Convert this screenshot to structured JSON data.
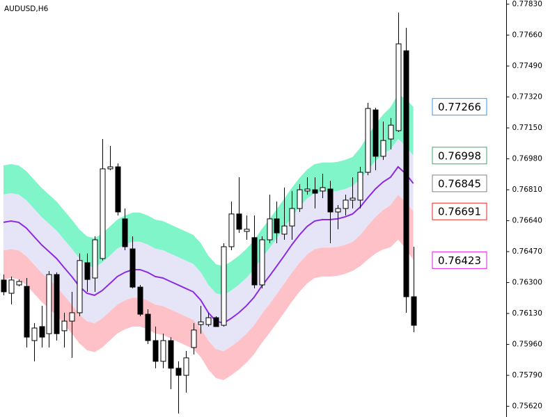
{
  "chart_data": {
    "type": "candlestick",
    "title": "AUDUSD,H6",
    "up_color": "#ffffff",
    "down_color": "#000000",
    "open": [
      0.76314,
      0.76241,
      0.76287,
      0.76279,
      0.75981,
      0.76058,
      0.76019,
      0.76344,
      0.76035,
      0.76088,
      0.76134,
      0.76409,
      0.76325,
      0.76432,
      0.76925,
      0.76936,
      0.7665,
      0.76485,
      0.76275,
      0.76126,
      0.75981,
      0.75867,
      0.75981,
      0.75829,
      0.7579,
      0.75943,
      0.76069,
      0.76069,
      0.76107,
      0.76065,
      0.76497,
      0.76677,
      0.76581,
      0.76547,
      0.76287,
      0.76535,
      0.7665,
      0.76566,
      0.76611,
      0.76707,
      0.76803,
      0.7681,
      0.76803,
      0.76814,
      0.76688,
      0.76707,
      0.76753,
      0.76753,
      0.76906,
      0.77249,
      0.76994,
      0.77089,
      0.77135,
      0.77574,
      0.76222
    ],
    "high": [
      0.76344,
      0.76333,
      0.76317,
      0.76325,
      0.76077,
      0.76172,
      0.76363,
      0.76356,
      0.76134,
      0.76249,
      0.7646,
      0.7646,
      0.76554,
      0.77089,
      0.77051,
      0.76955,
      0.76707,
      0.76554,
      0.76287,
      0.76153,
      0.76058,
      0.76019,
      0.76,
      0.75867,
      0.75924,
      0.76077,
      0.76172,
      0.76134,
      0.76115,
      0.76516,
      0.76745,
      0.76879,
      0.76669,
      0.76669,
      0.76554,
      0.76783,
      0.76745,
      0.76822,
      0.76803,
      0.76841,
      0.76879,
      0.76879,
      0.76898,
      0.7686,
      0.76726,
      0.76783,
      0.76879,
      0.76936,
      0.77288,
      0.77261,
      0.77185,
      0.77204,
      0.77784,
      0.777,
      0.76497
    ],
    "low": [
      0.7623,
      0.7618,
      0.76279,
      0.75943,
      0.75867,
      0.75943,
      0.75943,
      0.75981,
      0.75943,
      0.75886,
      0.76115,
      0.76249,
      0.76249,
      0.76421,
      0.76917,
      0.76669,
      0.76478,
      0.76268,
      0.76115,
      0.75962,
      0.75829,
      0.75829,
      0.75714,
      0.7558,
      0.75695,
      0.75905,
      0.76019,
      0.76058,
      0.76058,
      0.76058,
      0.76478,
      0.76573,
      0.76535,
      0.76268,
      0.76268,
      0.76516,
      0.76516,
      0.76535,
      0.76535,
      0.76688,
      0.76783,
      0.76707,
      0.76764,
      0.76516,
      0.76593,
      0.76669,
      0.76707,
      0.76707,
      0.7689,
      0.76917,
      0.76974,
      0.77032,
      0.77127,
      0.76134,
      0.76027
    ],
    "close": [
      0.76249,
      0.76314,
      0.76306,
      0.76,
      0.7605,
      0.76,
      0.76344,
      0.76019,
      0.76088,
      0.76134,
      0.76421,
      0.76317,
      0.76535,
      0.76925,
      0.76936,
      0.76688,
      0.76497,
      0.76275,
      0.76126,
      0.75981,
      0.75867,
      0.75981,
      0.75829,
      0.7579,
      0.75886,
      0.76039,
      0.76084,
      0.76107,
      0.76058,
      0.76497,
      0.76677,
      0.76593,
      0.76593,
      0.76287,
      0.76535,
      0.7665,
      0.76573,
      0.76611,
      0.76707,
      0.7681,
      0.76814,
      0.76791,
      0.76822,
      0.76688,
      0.76707,
      0.76753,
      0.76764,
      0.76906,
      0.77257,
      0.76994,
      0.77081,
      0.77165,
      0.77612,
      0.76222,
      0.76065
    ],
    "bands": [
      {
        "color": "#7ff5c9",
        "label_color": "#3d94e6",
        "values": [
          0.76944,
          0.76951,
          0.76944,
          0.76913,
          0.76867,
          0.76821,
          0.76783,
          0.76745,
          0.76695,
          0.76646,
          0.76592,
          0.76554,
          0.76543,
          0.76569,
          0.76607,
          0.76646,
          0.76669,
          0.76684,
          0.76684,
          0.76669,
          0.76646,
          0.76638,
          0.76619,
          0.766,
          0.76581,
          0.76562,
          0.76516,
          0.76447,
          0.76401,
          0.7639,
          0.76416,
          0.76447,
          0.76485,
          0.76531,
          0.76592,
          0.76646,
          0.76703,
          0.76761,
          0.76821,
          0.76875,
          0.76921,
          0.76951,
          0.76959,
          0.76959,
          0.76963,
          0.76974,
          0.7699,
          0.7704,
          0.77106,
          0.77169,
          0.77222,
          0.77264,
          0.77336,
          0.77308,
          0.77266
        ]
      },
      {
        "color": "#e6e4f7",
        "label_color": "#3aa86a",
        "values": [
          0.76784,
          0.76791,
          0.76784,
          0.76753,
          0.76707,
          0.76661,
          0.76623,
          0.76585,
          0.76535,
          0.76486,
          0.76432,
          0.76394,
          0.76383,
          0.76409,
          0.76447,
          0.76486,
          0.76509,
          0.76524,
          0.76524,
          0.76509,
          0.76486,
          0.76478,
          0.76459,
          0.7644,
          0.76421,
          0.76402,
          0.76356,
          0.76287,
          0.76241,
          0.7623,
          0.76256,
          0.76287,
          0.76325,
          0.76371,
          0.76432,
          0.76486,
          0.76543,
          0.76601,
          0.76661,
          0.76715,
          0.76761,
          0.76791,
          0.76799,
          0.76799,
          0.76803,
          0.76814,
          0.7683,
          0.76868,
          0.76919,
          0.76967,
          0.77005,
          0.77032,
          0.77089,
          0.77051,
          0.76998
        ]
      },
      {
        "color": "#8a2be2",
        "label_color": "#808080",
        "values": [
          0.76631,
          0.76638,
          0.76631,
          0.766,
          0.76554,
          0.76508,
          0.7647,
          0.76432,
          0.76382,
          0.76333,
          0.76279,
          0.76241,
          0.7623,
          0.76256,
          0.76294,
          0.76333,
          0.76356,
          0.76371,
          0.76371,
          0.76356,
          0.76333,
          0.76325,
          0.76306,
          0.76287,
          0.76268,
          0.76249,
          0.76203,
          0.76134,
          0.76088,
          0.76077,
          0.76103,
          0.76134,
          0.76172,
          0.76218,
          0.76279,
          0.76333,
          0.7639,
          0.76448,
          0.76508,
          0.76562,
          0.76608,
          0.76638,
          0.76646,
          0.76646,
          0.7665,
          0.76661,
          0.76677,
          0.76715,
          0.76766,
          0.76814,
          0.76852,
          0.76879,
          0.76936,
          0.76898,
          0.76845
        ]
      },
      {
        "color": "#ffc1c8",
        "label_color": "#e8231f",
        "values": [
          0.76477,
          0.76484,
          0.76477,
          0.76446,
          0.764,
          0.76354,
          0.76316,
          0.76278,
          0.76228,
          0.76179,
          0.76125,
          0.76087,
          0.76076,
          0.76102,
          0.7614,
          0.76179,
          0.76202,
          0.76217,
          0.76217,
          0.76202,
          0.76179,
          0.76171,
          0.76152,
          0.76133,
          0.76114,
          0.76095,
          0.76049,
          0.7598,
          0.75934,
          0.75923,
          0.75949,
          0.7598,
          0.76018,
          0.76064,
          0.76125,
          0.76179,
          0.76236,
          0.76294,
          0.76354,
          0.76408,
          0.76454,
          0.76484,
          0.76492,
          0.76492,
          0.76496,
          0.76507,
          0.76523,
          0.76561,
          0.76612,
          0.7666,
          0.76698,
          0.76725,
          0.76782,
          0.76744,
          0.76691
        ]
      },
      {
        "color": "#ffc1c8",
        "label_color": "#e619e6",
        "values": [
          0.76318,
          0.76325,
          0.76318,
          0.76287,
          0.76241,
          0.76195,
          0.76157,
          0.76119,
          0.76069,
          0.7602,
          0.75966,
          0.75928,
          0.75917,
          0.75943,
          0.75981,
          0.7602,
          0.76043,
          0.76058,
          0.76058,
          0.76043,
          0.7602,
          0.76012,
          0.75993,
          0.75974,
          0.75955,
          0.75936,
          0.7589,
          0.75821,
          0.75775,
          0.75764,
          0.7579,
          0.75821,
          0.75859,
          0.75905,
          0.75966,
          0.7602,
          0.76077,
          0.76135,
          0.76195,
          0.76249,
          0.76295,
          0.76325,
          0.76333,
          0.76333,
          0.76337,
          0.76348,
          0.76364,
          0.7639,
          0.76426,
          0.76459,
          0.76482,
          0.76494,
          0.76536,
          0.76488,
          0.76423
        ]
      }
    ],
    "ylim": [
      0.75561,
      0.77853
    ],
    "yticks": [
      {
        "value": 0.7783,
        "label": "0.77830"
      },
      {
        "value": 0.7766,
        "label": "0.77660"
      },
      {
        "value": 0.7749,
        "label": "0.77490"
      },
      {
        "value": 0.7732,
        "label": "0.77320"
      },
      {
        "value": 0.7715,
        "label": "0.77150"
      },
      {
        "value": 0.7698,
        "label": "0.76980"
      },
      {
        "value": 0.7681,
        "label": "0.76810"
      },
      {
        "value": 0.7664,
        "label": "0.76640"
      },
      {
        "value": 0.7647,
        "label": "0.76470"
      },
      {
        "value": 0.763,
        "label": "0.76300"
      },
      {
        "value": 0.7613,
        "label": "0.76130"
      },
      {
        "value": 0.7596,
        "label": "0.75960"
      },
      {
        "value": 0.7579,
        "label": "0.75790"
      },
      {
        "value": 0.7562,
        "label": "0.75620"
      }
    ]
  }
}
